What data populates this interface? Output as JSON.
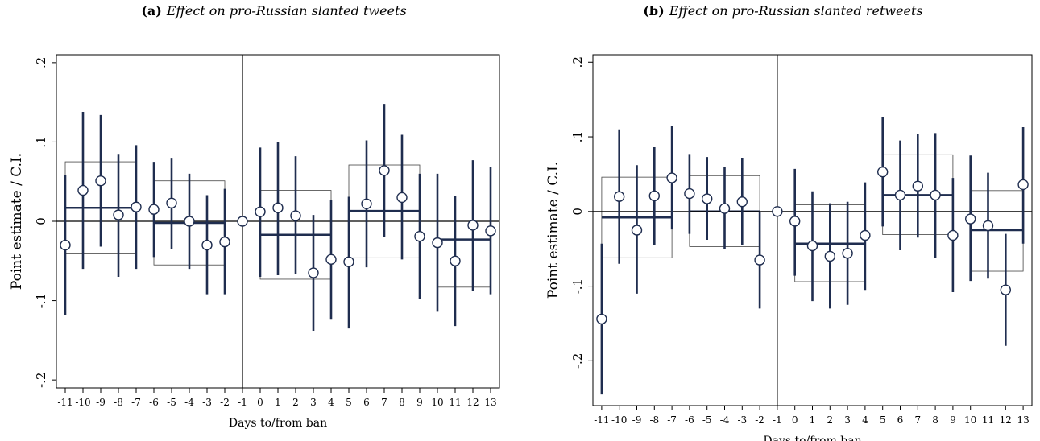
{
  "chart_data": [
    {
      "type": "scatter",
      "panel_label": "(a)",
      "title": "Effect on pro-Russian slanted tweets",
      "xlabel": "Days to/from ban",
      "ylabel": "Point estimate / C.I.",
      "x": [
        -11,
        -10,
        -9,
        -8,
        -7,
        -6,
        -5,
        -4,
        -3,
        -2,
        -1,
        0,
        1,
        2,
        3,
        4,
        5,
        6,
        7,
        8,
        9,
        10,
        11,
        12,
        13
      ],
      "x_tick_labels": [
        "-11",
        "-10",
        "-9",
        "-8",
        "-7",
        "-6",
        "-5",
        "-4",
        "-3",
        "-2",
        "-1",
        "0",
        "1",
        "2",
        "3",
        "4",
        "5",
        "6",
        "7",
        "8",
        "9",
        "10",
        "11",
        "12",
        "13"
      ],
      "y_ticks": [
        -0.2,
        -0.1,
        0,
        0.1,
        0.2
      ],
      "y_tick_labels": [
        "-.2",
        "-.1",
        "0",
        ".1",
        ".2"
      ],
      "ylim": [
        -0.21,
        0.21
      ],
      "point_estimate": [
        -0.03,
        0.039,
        0.051,
        0.008,
        0.018,
        0.015,
        0.023,
        0.0,
        -0.03,
        -0.026,
        0.0,
        0.012,
        0.017,
        0.007,
        -0.065,
        -0.048,
        -0.051,
        0.022,
        0.064,
        0.03,
        -0.019,
        -0.027,
        -0.05,
        -0.005,
        -0.012
      ],
      "ci_lower": [
        -0.118,
        -0.06,
        -0.032,
        -0.07,
        -0.06,
        -0.045,
        -0.035,
        -0.06,
        -0.092,
        -0.092,
        0.0,
        -0.07,
        -0.068,
        -0.067,
        -0.138,
        -0.124,
        -0.135,
        -0.058,
        -0.02,
        -0.048,
        -0.098,
        -0.114,
        -0.132,
        -0.088,
        -0.092
      ],
      "ci_upper": [
        0.058,
        0.138,
        0.134,
        0.085,
        0.096,
        0.075,
        0.08,
        0.06,
        0.033,
        0.041,
        0.0,
        0.093,
        0.1,
        0.082,
        0.008,
        0.027,
        0.031,
        0.102,
        0.148,
        0.109,
        0.06,
        0.06,
        0.032,
        0.077,
        0.068
      ],
      "group_bands": [
        {
          "x_start": -11,
          "x_end": -7,
          "mean": 0.017,
          "lower": -0.041,
          "upper": 0.075
        },
        {
          "x_start": -6,
          "x_end": -2,
          "mean": -0.002,
          "lower": -0.055,
          "upper": 0.051
        },
        {
          "x_start": 0,
          "x_end": 4,
          "mean": -0.017,
          "lower": -0.073,
          "upper": 0.039
        },
        {
          "x_start": 5,
          "x_end": 9,
          "mean": 0.013,
          "lower": -0.046,
          "upper": 0.071
        },
        {
          "x_start": 10,
          "x_end": 13,
          "mean": -0.023,
          "lower": -0.083,
          "upper": 0.037
        }
      ],
      "vertical_line_x": -1,
      "grid": false
    },
    {
      "type": "scatter",
      "panel_label": "(b)",
      "title": "Effect on pro-Russian slanted retweets",
      "xlabel": "Days to/from ban",
      "ylabel": "Point estimate / C.I.",
      "x": [
        -11,
        -10,
        -9,
        -8,
        -7,
        -6,
        -5,
        -4,
        -3,
        -2,
        -1,
        0,
        1,
        2,
        3,
        4,
        5,
        6,
        7,
        8,
        9,
        10,
        11,
        12,
        13
      ],
      "x_tick_labels": [
        "-11",
        "-10",
        "-9",
        "-8",
        "-7",
        "-6",
        "-5",
        "-4",
        "-3",
        "-2",
        "-1",
        "0",
        "1",
        "2",
        "3",
        "4",
        "5",
        "6",
        "7",
        "8",
        "9",
        "10",
        "11",
        "12",
        "13"
      ],
      "y_ticks": [
        -0.2,
        -0.1,
        0,
        0.1,
        0.2
      ],
      "y_tick_labels": [
        "-.2",
        "-.1",
        "0",
        ".1",
        ".2"
      ],
      "ylim": [
        -0.26,
        0.21
      ],
      "point_estimate": [
        -0.144,
        0.02,
        -0.025,
        0.021,
        0.045,
        0.024,
        0.017,
        0.004,
        0.013,
        -0.065,
        0.0,
        -0.013,
        -0.046,
        -0.06,
        -0.056,
        -0.032,
        0.053,
        0.022,
        0.034,
        0.022,
        -0.032,
        -0.01,
        -0.019,
        -0.105,
        0.036
      ],
      "ci_lower": [
        -0.245,
        -0.07,
        -0.11,
        -0.045,
        -0.024,
        -0.03,
        -0.038,
        -0.05,
        -0.045,
        -0.13,
        0.0,
        -0.086,
        -0.12,
        -0.13,
        -0.125,
        -0.105,
        -0.02,
        -0.052,
        -0.035,
        -0.062,
        -0.108,
        -0.093,
        -0.09,
        -0.18,
        -0.043
      ],
      "ci_upper": [
        -0.043,
        0.11,
        0.062,
        0.086,
        0.114,
        0.077,
        0.073,
        0.06,
        0.072,
        0.0,
        0.0,
        0.057,
        0.027,
        0.011,
        0.013,
        0.039,
        0.127,
        0.095,
        0.104,
        0.105,
        0.045,
        0.075,
        0.052,
        -0.03,
        0.113
      ],
      "group_bands": [
        {
          "x_start": -11,
          "x_end": -7,
          "mean": -0.008,
          "lower": -0.062,
          "upper": 0.046
        },
        {
          "x_start": -6,
          "x_end": -2,
          "mean": 0.0,
          "lower": -0.047,
          "upper": 0.048
        },
        {
          "x_start": 0,
          "x_end": 4,
          "mean": -0.043,
          "lower": -0.094,
          "upper": 0.009
        },
        {
          "x_start": 5,
          "x_end": 9,
          "mean": 0.022,
          "lower": -0.031,
          "upper": 0.076
        },
        {
          "x_start": 10,
          "x_end": 13,
          "mean": -0.025,
          "lower": -0.08,
          "upper": 0.028
        }
      ],
      "vertical_line_x": -1,
      "grid": false
    }
  ],
  "style": {
    "estimate_color": "#1f2d4f",
    "band_color": "#444444",
    "axis_color": "#000000"
  }
}
